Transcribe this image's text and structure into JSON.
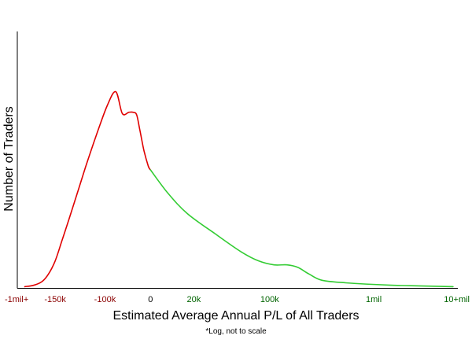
{
  "chart_data": {
    "type": "line",
    "title": "",
    "xlabel": "Estimated Average Annual P/L of All Traders",
    "ylabel": "Number of Traders",
    "note": "*Log, not to scale",
    "x_scale": "log (not to scale)",
    "grid": false,
    "legend": "none",
    "colors": {
      "loss": "#e00000",
      "profit": "#33cc33",
      "loss_tick": "#8b0000",
      "profit_tick": "#006400",
      "zero_tick": "#000000",
      "axis": "#000000"
    },
    "x_ticks": [
      {
        "label": "-1mil+",
        "pos": 0.0,
        "group": "loss"
      },
      {
        "label": "-150k",
        "pos": 0.8,
        "group": "loss"
      },
      {
        "label": "-100k",
        "pos": 1.95,
        "group": "loss"
      },
      {
        "label": "0",
        "pos": 3.0,
        "group": "zero"
      },
      {
        "label": "20k",
        "pos": 4.0,
        "group": "profit"
      },
      {
        "label": "100k",
        "pos": 5.75,
        "group": "profit"
      },
      {
        "label": "1mil",
        "pos": 8.15,
        "group": "profit"
      },
      {
        "label": "10+mil",
        "pos": 10.0,
        "group": "profit"
      }
    ],
    "xlim": [
      0,
      10
    ],
    "ylim": [
      0,
      100
    ],
    "series": [
      {
        "group": "loss",
        "x": [
          0.1,
          0.3,
          0.5,
          0.65,
          0.8,
          0.95,
          1.2,
          1.5,
          1.75,
          2.0,
          2.2,
          2.35,
          2.5,
          2.6,
          2.68,
          2.75,
          2.85,
          2.95,
          3.0
        ],
        "y": [
          0.5,
          1,
          2.5,
          5.5,
          10.5,
          18,
          31,
          47,
          59.5,
          71,
          76.5,
          68,
          68.5,
          68.5,
          67.5,
          62,
          53.5,
          47.5,
          46
        ]
      },
      {
        "group": "profit",
        "x": [
          3.0,
          3.4,
          3.85,
          4.5,
          5.1,
          5.5,
          5.85,
          6.15,
          6.4,
          6.65,
          6.95,
          7.5,
          8.5,
          9.2,
          9.98
        ],
        "y": [
          46,
          37,
          29,
          21,
          14,
          10.5,
          9,
          9,
          8,
          5.5,
          3,
          2,
          1.1,
          0.8,
          0.5
        ]
      }
    ]
  }
}
